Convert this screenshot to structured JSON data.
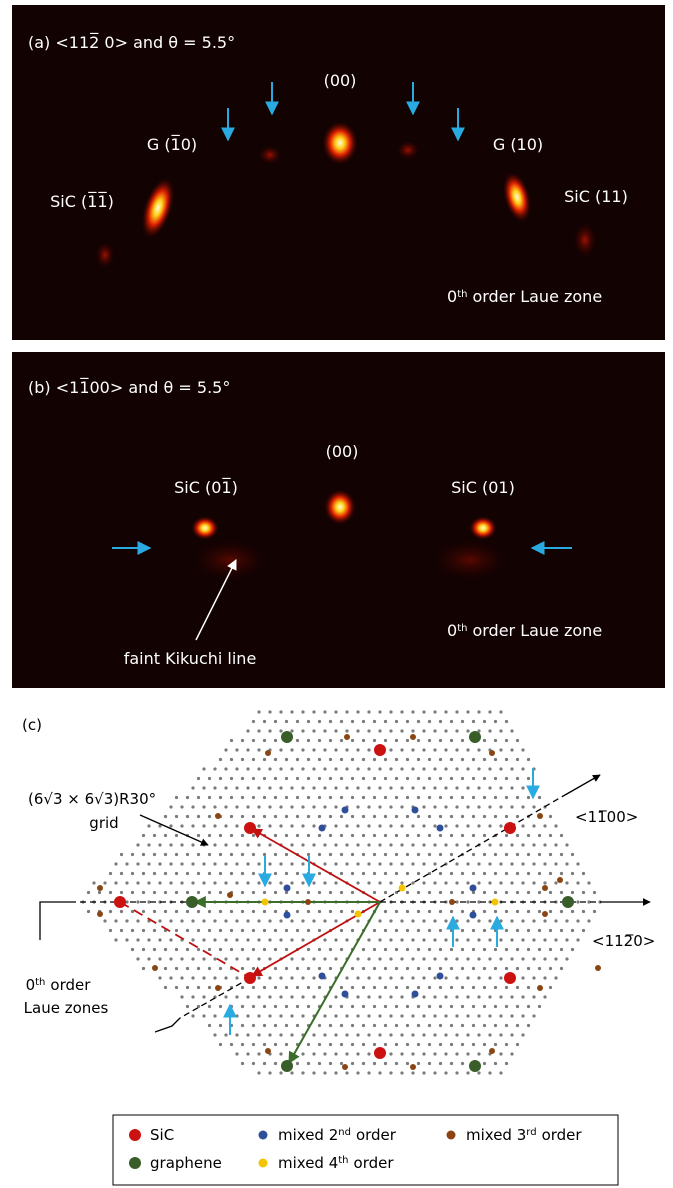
{
  "panel_a": {
    "label": "(a) <112̅ 0> and θ = 5.5°",
    "center": "(00)",
    "g_left": "G (1̅0)",
    "g_right": "G (10)",
    "sic_left": "SiC (1̅1̅)",
    "sic_right": "SiC (11)",
    "laue": {
      "order": "0",
      "suffix": "th",
      "text": "order Laue zone"
    }
  },
  "panel_b": {
    "label": "(b) <11̅00> and θ = 5.5°",
    "center": "(00)",
    "sic_left": "SiC (01̅)",
    "sic_right": "SiC (01)",
    "laue": {
      "order": "0",
      "suffix": "th",
      "text": "order Laue zone"
    },
    "kikuchi": "faint Kikuchi line"
  },
  "panel_c": {
    "label": "(c)",
    "grid_label": "(6√3 × 6√3)R30°",
    "grid_word": "grid",
    "dir_upper": "<11̅00>",
    "dir_right": "<112̅0>",
    "laue": {
      "order": "0",
      "suffix": "th",
      "text": "order",
      "line2": "Laue zones"
    }
  },
  "legend": [
    {
      "label": "SiC",
      "color": "#cc1111"
    },
    {
      "label": "graphene",
      "color": "#3a5e2a"
    },
    {
      "label": "mixed 2",
      "sup": "nd",
      "rest": "order",
      "color": "#2e4f9a"
    },
    {
      "label": "mixed 3",
      "sup": "rd",
      "rest": "order",
      "color": "#8b4513"
    },
    {
      "label": "mixed 4",
      "sup": "th",
      "rest": "order",
      "color": "#f5c400"
    }
  ]
}
